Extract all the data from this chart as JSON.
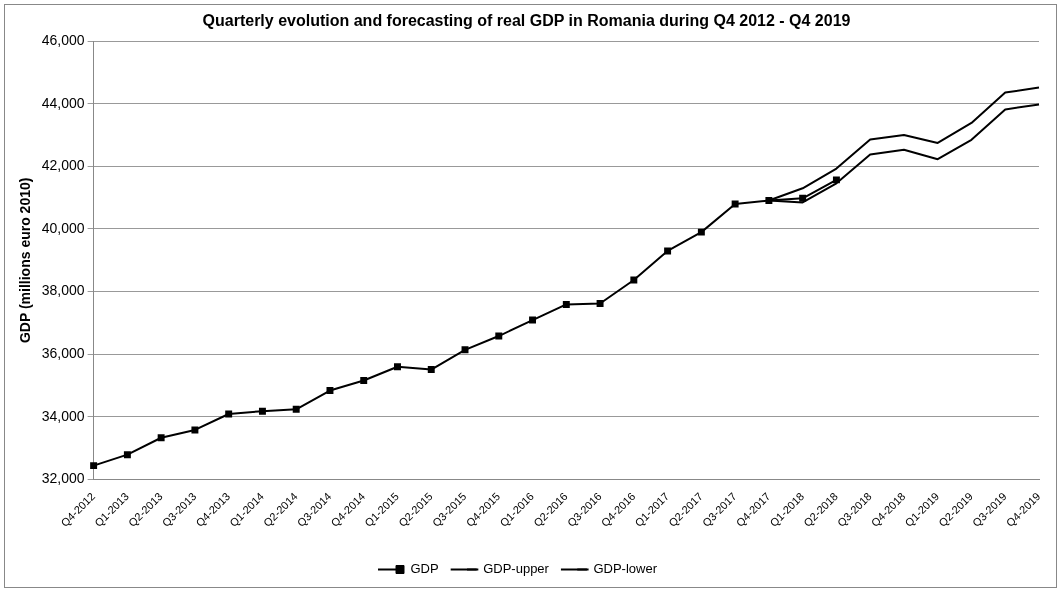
{
  "chart_data": {
    "type": "line",
    "title": "Quarterly evolution and forecasting of real GDP in Romania during Q4 2012 - Q4 2019",
    "ylabel": "GDP (millions euro 2010)",
    "categories": [
      "Q4-2012",
      "Q1-2013",
      "Q2-2013",
      "Q3-2013",
      "Q4-2013",
      "Q1-2014",
      "Q2-2014",
      "Q3-2014",
      "Q4-2014",
      "Q1-2015",
      "Q2-2015",
      "Q3-2015",
      "Q4-2015",
      "Q1-2016",
      "Q2-2016",
      "Q3-2016",
      "Q4-2016",
      "Q1-2017",
      "Q2-2017",
      "Q3-2017",
      "Q4-2017",
      "Q1-2018",
      "Q2-2018",
      "Q3-2018",
      "Q4-2018",
      "Q1-2019",
      "Q2-2019",
      "Q3-2019",
      "Q4-2019"
    ],
    "series": [
      {
        "name": "GDP",
        "color": "#000000",
        "marker": "square",
        "values": [
          32440,
          32790,
          33330,
          33580,
          34090,
          34180,
          34240,
          34840,
          35160,
          35600,
          35510,
          36140,
          36580,
          37090,
          37590,
          37620,
          38370,
          39300,
          39900,
          40800,
          40910,
          40980,
          41570,
          null,
          null,
          null,
          null,
          null,
          null
        ]
      },
      {
        "name": "GDP-upper",
        "color": "#000000",
        "marker": "none",
        "values": [
          null,
          null,
          null,
          null,
          null,
          null,
          null,
          null,
          null,
          null,
          null,
          null,
          null,
          null,
          null,
          null,
          null,
          null,
          null,
          null,
          40910,
          41300,
          41930,
          42860,
          43000,
          42750,
          43390,
          44360,
          44520
        ]
      },
      {
        "name": "GDP-lower",
        "color": "#000000",
        "marker": "none",
        "values": [
          null,
          null,
          null,
          null,
          null,
          null,
          null,
          null,
          null,
          null,
          null,
          null,
          null,
          null,
          null,
          null,
          null,
          null,
          null,
          null,
          40910,
          40850,
          41460,
          42380,
          42530,
          42230,
          42850,
          43820,
          43980
        ]
      }
    ],
    "ylim": [
      32000,
      46000
    ],
    "yticks": [
      {
        "value": 32000,
        "label": "32,000"
      },
      {
        "value": 34000,
        "label": "34,000"
      },
      {
        "value": 36000,
        "label": "36,000"
      },
      {
        "value": 38000,
        "label": "38,000"
      },
      {
        "value": 40000,
        "label": "40,000"
      },
      {
        "value": 42000,
        "label": "42,000"
      },
      {
        "value": 44000,
        "label": "44,000"
      },
      {
        "value": 46000,
        "label": "46,000"
      }
    ],
    "grid": "y",
    "legend": "bottom",
    "line_style": "solid"
  }
}
